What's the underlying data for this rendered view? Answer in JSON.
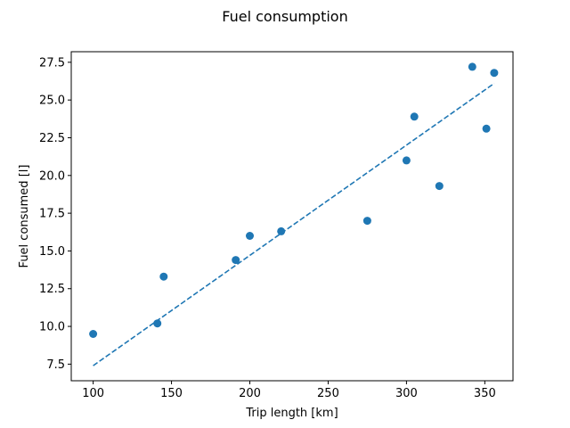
{
  "chart_data": {
    "type": "scatter",
    "title": "Fuel consumption",
    "xlabel": "Trip length [km]",
    "ylabel": "Fuel consumed [l]",
    "xlim": [
      86,
      368
    ],
    "ylim": [
      6.4,
      28.2
    ],
    "xticks": [
      100,
      150,
      200,
      250,
      300,
      350
    ],
    "xtick_labels": [
      "100",
      "150",
      "200",
      "250",
      "300",
      "350"
    ],
    "yticks": [
      7.5,
      10.0,
      12.5,
      15.0,
      17.5,
      20.0,
      22.5,
      25.0,
      27.5
    ],
    "ytick_labels": [
      "7.5",
      "10.0",
      "12.5",
      "15.0",
      "17.5",
      "20.0",
      "22.5",
      "25.0",
      "27.5"
    ],
    "grid": false,
    "series": [
      {
        "type": "scatter",
        "x": [
          100,
          141,
          145,
          191,
          200,
          220,
          275,
          300,
          305,
          321,
          342,
          351,
          356
        ],
        "y": [
          9.5,
          10.2,
          13.3,
          14.4,
          16.0,
          16.3,
          17.0,
          21.0,
          23.9,
          19.3,
          27.2,
          23.1,
          26.8
        ],
        "color": "#1f77b4"
      },
      {
        "type": "line",
        "style": "dashed",
        "x": [
          100,
          356
        ],
        "y": [
          7.4,
          26.1
        ],
        "color": "#1f77b4"
      }
    ]
  }
}
